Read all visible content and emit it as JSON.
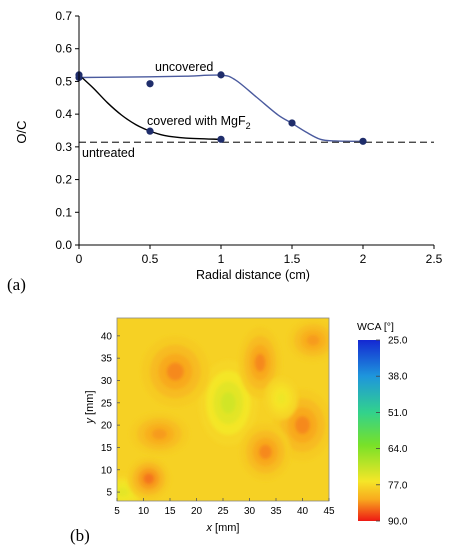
{
  "chart_data": [
    {
      "type": "line",
      "panel_label": "(a)",
      "xlabel": "Radial distance (cm)",
      "ylabel": "O/C",
      "xlim": [
        0,
        2.5
      ],
      "ylim": [
        0,
        0.7
      ],
      "xticks": [
        "0",
        "0.5",
        "1",
        "1.5",
        "2",
        "2.5"
      ],
      "yticks": [
        "0.0",
        "0.1",
        "0.2",
        "0.3",
        "0.4",
        "0.5",
        "0.6",
        "0.7"
      ],
      "grid": false,
      "colors": {
        "uncovered": "#4a5a9e",
        "covered": "#000000",
        "points": "#1f2d6b",
        "baseline": "#333333"
      },
      "series": [
        {
          "name": "uncovered",
          "points": [
            [
              0,
              0.512
            ],
            [
              0.5,
              0.493
            ],
            [
              1,
              0.52
            ],
            [
              1.5,
              0.373
            ],
            [
              2,
              0.317
            ]
          ],
          "curve": [
            [
              0,
              0.512
            ],
            [
              0.25,
              0.513
            ],
            [
              0.5,
              0.514
            ],
            [
              0.75,
              0.516
            ],
            [
              1,
              0.519
            ],
            [
              1.1,
              0.505
            ],
            [
              1.25,
              0.452
            ],
            [
              1.4,
              0.398
            ],
            [
              1.5,
              0.372
            ],
            [
              1.6,
              0.345
            ],
            [
              1.7,
              0.323
            ],
            [
              1.8,
              0.318
            ],
            [
              2,
              0.317
            ]
          ]
        },
        {
          "name": "covered with MgF",
          "name_subscript": "2",
          "points": [
            [
              0,
              0.52
            ],
            [
              0.5,
              0.348
            ],
            [
              1,
              0.323
            ]
          ],
          "curve": [
            [
              0,
              0.52
            ],
            [
              0.1,
              0.48
            ],
            [
              0.2,
              0.435
            ],
            [
              0.3,
              0.397
            ],
            [
              0.4,
              0.368
            ],
            [
              0.5,
              0.348
            ],
            [
              0.6,
              0.335
            ],
            [
              0.75,
              0.327
            ],
            [
              1,
              0.323
            ]
          ]
        }
      ],
      "reference_line": {
        "label": "untreated",
        "y": 0.314
      }
    },
    {
      "type": "heatmap",
      "panel_label": "(b)",
      "xlabel_var": "x",
      "xlabel_unit": "[mm]",
      "ylabel_var": "y",
      "ylabel_unit": "[mm]",
      "xlim": [
        5,
        45
      ],
      "ylim": [
        3,
        44
      ],
      "xticks": [
        "5",
        "10",
        "15",
        "20",
        "25",
        "30",
        "35",
        "40",
        "45"
      ],
      "yticks": [
        "5",
        "10",
        "15",
        "20",
        "25",
        "30",
        "35",
        "40"
      ],
      "colorbar": {
        "title": "WCA [°]",
        "min": 25.0,
        "max": 90.0,
        "ticks": [
          "25.0",
          "38.0",
          "51.0",
          "64.0",
          "77.0",
          "90.0"
        ]
      },
      "background_wca": 78,
      "features": [
        {
          "x": 25,
          "y": 23.5,
          "value": 65,
          "spread_x": 2.2,
          "spread_y": 4.2
        },
        {
          "x": 26,
          "y": 25,
          "value": 72,
          "spread_x": 3.5,
          "spread_y": 6
        },
        {
          "x": 6,
          "y": 5,
          "value": 74,
          "spread_x": 3,
          "spread_y": 2.5
        },
        {
          "x": 11,
          "y": 8,
          "value": 85,
          "spread_x": 2.5,
          "spread_y": 3
        },
        {
          "x": 16,
          "y": 32,
          "value": 84,
          "spread_x": 4,
          "spread_y": 5
        },
        {
          "x": 32,
          "y": 34,
          "value": 84,
          "spread_x": 2.5,
          "spread_y": 5
        },
        {
          "x": 40,
          "y": 20,
          "value": 84,
          "spread_x": 3.5,
          "spread_y": 5
        },
        {
          "x": 33,
          "y": 14,
          "value": 84,
          "spread_x": 3,
          "spread_y": 4
        },
        {
          "x": 13,
          "y": 18,
          "value": 83,
          "spread_x": 3.5,
          "spread_y": 3
        },
        {
          "x": 42,
          "y": 39,
          "value": 83,
          "spread_x": 3,
          "spread_y": 3
        },
        {
          "x": 36,
          "y": 26,
          "value": 75,
          "spread_x": 2,
          "spread_y": 3
        }
      ]
    }
  ]
}
